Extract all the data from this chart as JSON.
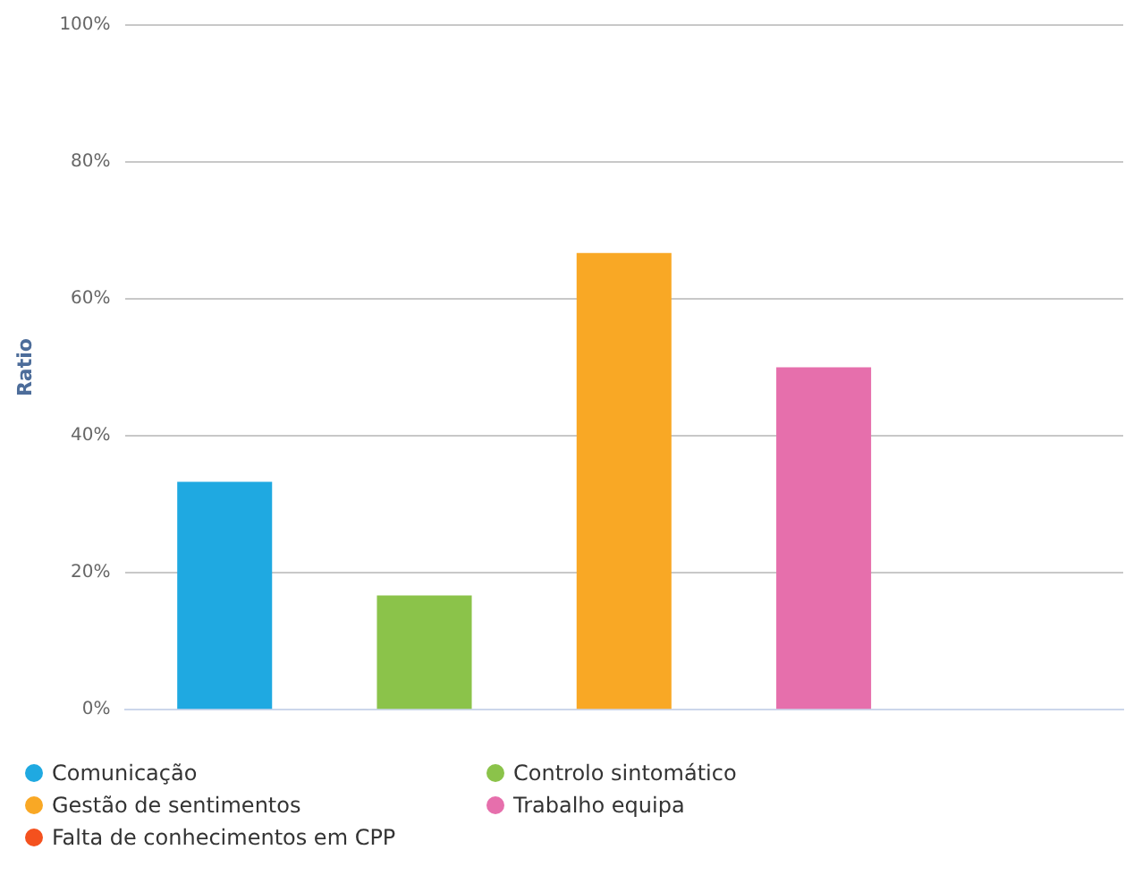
{
  "chart_data": {
    "type": "bar",
    "ylabel": "Ratio",
    "categories": [
      null,
      null,
      null,
      null,
      null
    ],
    "series": [
      {
        "name": "Comunicação",
        "color": "#1fa9e1",
        "values": [
          33.3,
          null,
          null,
          null,
          null
        ]
      },
      {
        "name": "Controlo sintomático",
        "color": "#8bc34a",
        "values": [
          null,
          16.7,
          null,
          null,
          null
        ]
      },
      {
        "name": "Gestão de sentimentos",
        "color": "#f9a825",
        "values": [
          null,
          null,
          66.7,
          null,
          null
        ]
      },
      {
        "name": "Trabalho equipa",
        "color": "#e66fac",
        "values": [
          null,
          null,
          null,
          50,
          null
        ]
      },
      {
        "name": "Falta de conhecimentos em CPP",
        "color": "#f4511e",
        "values": [
          null,
          null,
          null,
          null,
          0
        ]
      }
    ],
    "ylim": [
      0,
      100
    ],
    "yticks": [
      {
        "value": 0,
        "label": "0%"
      },
      {
        "value": 20,
        "label": "20%"
      },
      {
        "value": 40,
        "label": "40%"
      },
      {
        "value": 60,
        "label": "60%"
      },
      {
        "value": 80,
        "label": "80%"
      },
      {
        "value": 100,
        "label": "100%"
      }
    ],
    "grid": "y",
    "legend": "bottom"
  }
}
